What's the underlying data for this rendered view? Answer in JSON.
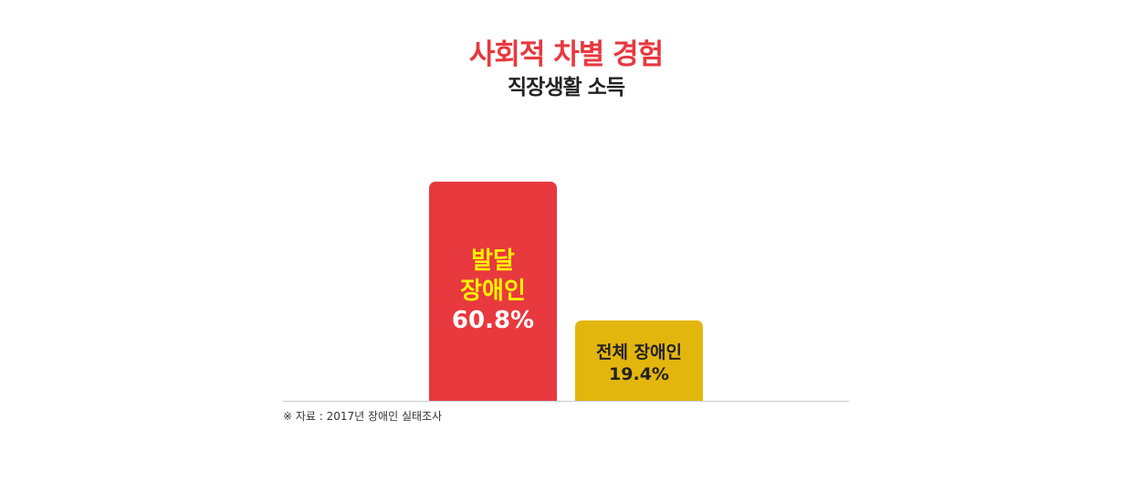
{
  "chart_data": {
    "type": "bar",
    "title": "사회적 차별 경험",
    "subtitle": "직장생활 소득",
    "categories": [
      "발달 장애인",
      "전체 장애인"
    ],
    "values": [
      60.8,
      19.4
    ],
    "value_labels": [
      "60.8%",
      "19.4%"
    ],
    "label_lines": [
      [
        "발달",
        "장애인"
      ],
      [
        "전체 장애인"
      ]
    ],
    "colors": [
      "#e8393f",
      "#e3b60d"
    ],
    "label_colors": [
      "#fff200",
      "#222222"
    ],
    "value_colors": [
      "#ffffff",
      "#222222"
    ],
    "grid": false,
    "ylim": [
      0,
      60.8
    ],
    "source": "※ 자료 : 2017년 장애인 실태조사"
  }
}
